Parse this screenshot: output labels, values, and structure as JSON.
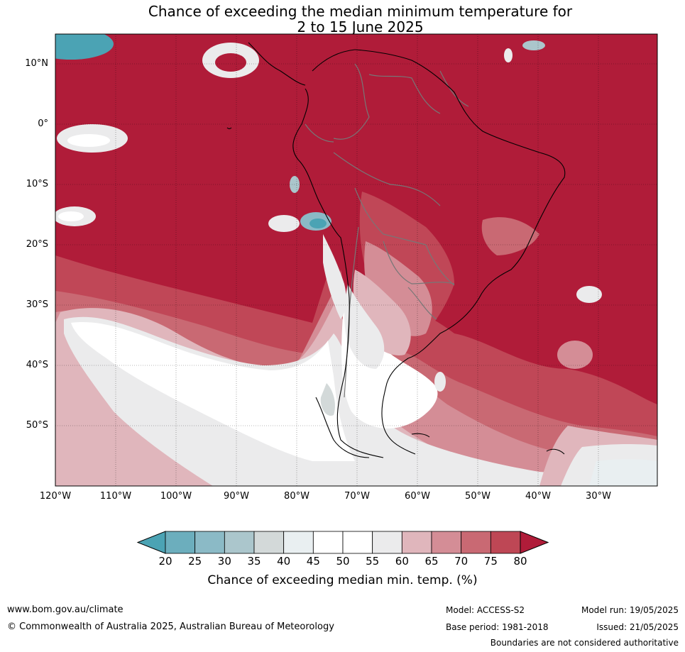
{
  "title_line1": "Chance of exceeding the median minimum temperature for",
  "title_line2": "2 to 15 June 2025",
  "lat_labels": [
    "10°N",
    "0°",
    "10°S",
    "20°S",
    "30°S",
    "40°S",
    "50°S"
  ],
  "lon_labels": [
    "120°W",
    "110°W",
    "100°W",
    "90°W",
    "80°W",
    "70°W",
    "60°W",
    "50°W",
    "40°W",
    "30°W"
  ],
  "colorbar": {
    "ticks": [
      "20",
      "25",
      "30",
      "35",
      "40",
      "45",
      "50",
      "55",
      "60",
      "65",
      "70",
      "75",
      "80"
    ],
    "colors": [
      "#4ba3b4",
      "#6caebd",
      "#8bbac6",
      "#abc6cc",
      "#d3d9d9",
      "#e9eff1",
      "#ffffff",
      "#ffffff",
      "#ebebec",
      "#e0b6bc",
      "#d48d96",
      "#c96973",
      "#be4755",
      "#b01c39"
    ],
    "label": "Chance of exceeding median min. temp. (%)"
  },
  "colors": {
    "dominant": "#b01c39",
    "cool": "#4ba3b4"
  },
  "footer": {
    "url": "www.bom.gov.au/climate",
    "copyright": "© Commonwealth of Australia 2025, Australian Bureau of Meteorology",
    "model": "Model: ACCESS-S2",
    "base_period": "Base period: 1981-2018",
    "model_run": "Model run: 19/05/2025",
    "issued": "Issued: 21/05/2025",
    "disclaimer": "Boundaries are not considered authoritative"
  }
}
